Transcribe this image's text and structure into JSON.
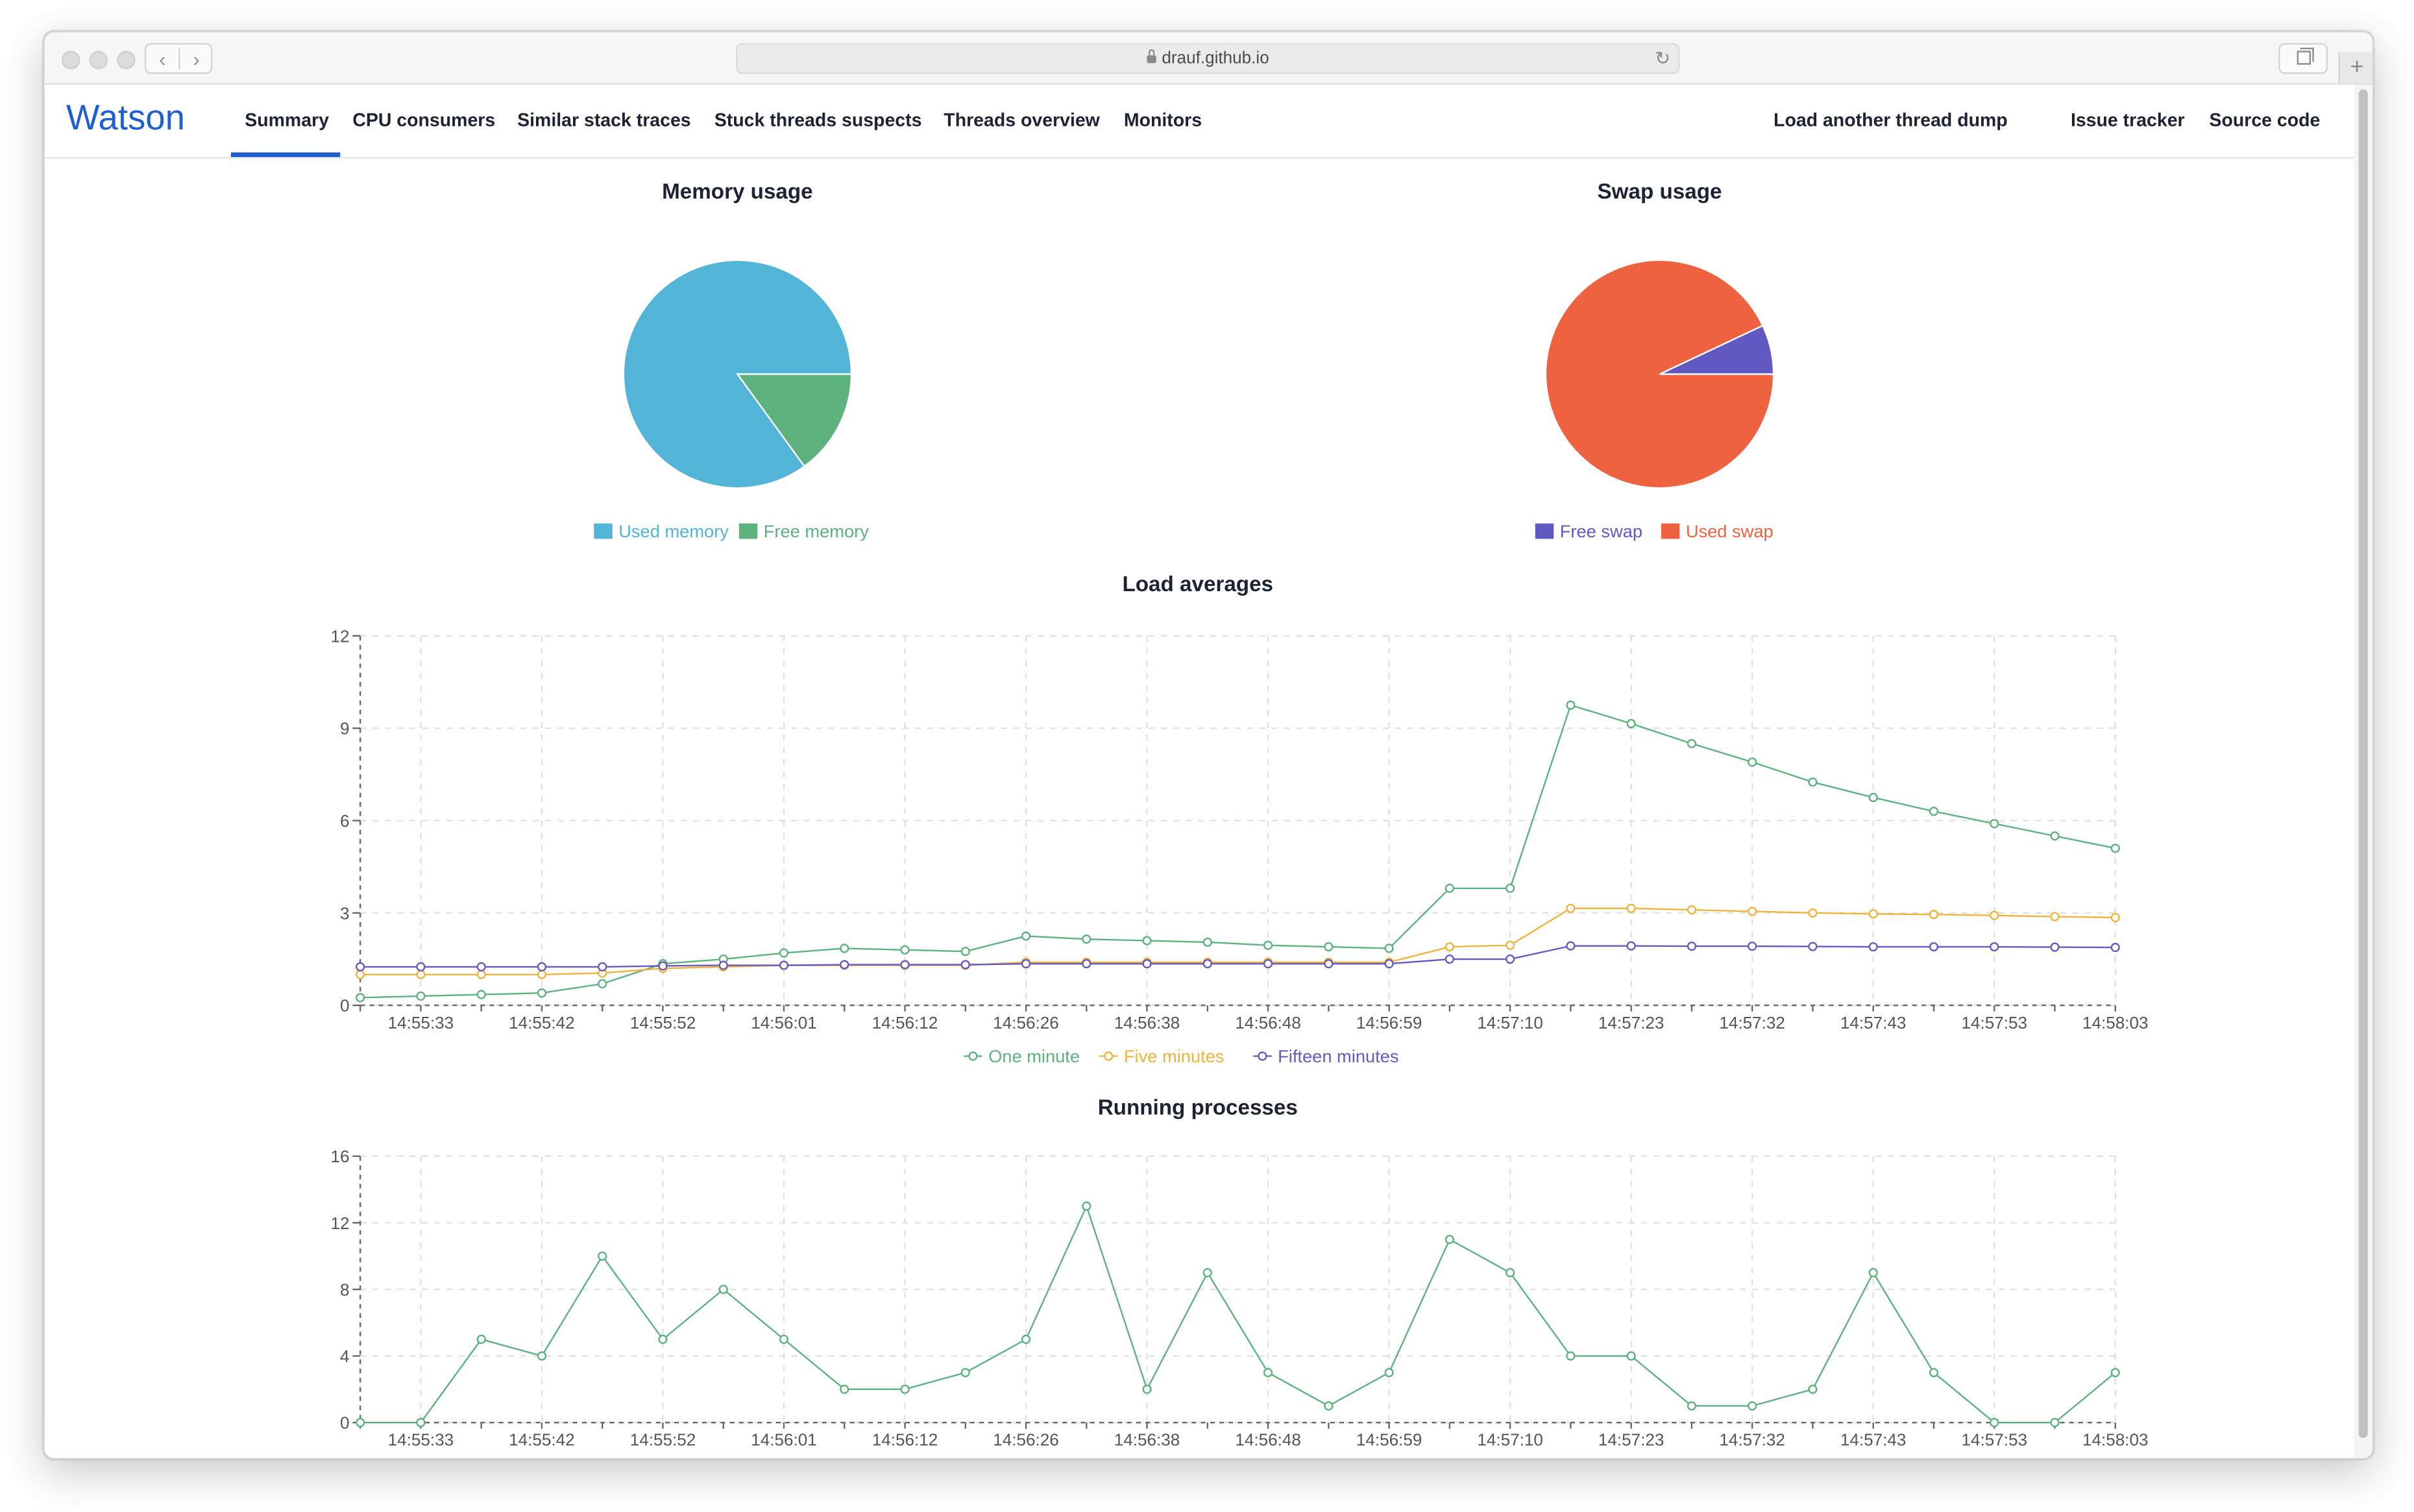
{
  "browser": {
    "url": "drauf.github.io"
  },
  "nav": {
    "brand": "Watson",
    "left_links": [
      "Summary",
      "CPU consumers",
      "Similar stack traces",
      "Stuck threads suspects",
      "Threads overview",
      "Monitors"
    ],
    "active": "Summary",
    "right_links": [
      "Load another thread dump",
      "Issue tracker",
      "Source code"
    ]
  },
  "colors": {
    "accent": "#1f5fcf",
    "used_memory": "#52b4d6",
    "free_memory": "#5db27e",
    "free_swap": "#6158c1",
    "used_swap": "#ef6240",
    "one_minute": "#5db27e",
    "five_minutes": "#f0b33c",
    "fifteen_minutes": "#6a58c1"
  },
  "chart_data": [
    {
      "type": "pie",
      "title": "Memory usage",
      "slices": [
        {
          "label": "Used memory",
          "value": 85
        },
        {
          "label": "Free memory",
          "value": 15
        }
      ],
      "legend": "bottom"
    },
    {
      "type": "pie",
      "title": "Swap usage",
      "slices": [
        {
          "label": "Free swap",
          "value": 7
        },
        {
          "label": "Used swap",
          "value": 93
        }
      ],
      "legend": "bottom"
    },
    {
      "type": "line",
      "title": "Load averages",
      "x": [
        "14:55:28",
        "14:55:33",
        "14:55:38",
        "14:55:42",
        "14:55:47",
        "14:55:52",
        "14:55:56",
        "14:56:01",
        "14:56:07",
        "14:56:12",
        "14:56:19",
        "14:56:26",
        "14:56:32",
        "14:56:38",
        "14:56:43",
        "14:56:48",
        "14:56:54",
        "14:56:59",
        "14:57:04",
        "14:57:10",
        "14:57:16",
        "14:57:23",
        "14:57:27",
        "14:57:32",
        "14:57:37",
        "14:57:43",
        "14:57:48",
        "14:57:53",
        "14:57:58",
        "14:58:03"
      ],
      "tick_labels": [
        "14:55:33",
        "14:55:42",
        "14:55:52",
        "14:56:01",
        "14:56:12",
        "14:56:26",
        "14:56:38",
        "14:56:48",
        "14:56:59",
        "14:57:10",
        "14:57:23",
        "14:57:32",
        "14:57:43",
        "14:57:53",
        "14:58:03"
      ],
      "series": [
        {
          "name": "One minute",
          "values": [
            0.25,
            0.3,
            0.35,
            0.4,
            0.7,
            1.35,
            1.5,
            1.7,
            1.85,
            1.8,
            1.75,
            2.25,
            2.15,
            2.1,
            2.05,
            1.95,
            1.9,
            1.85,
            3.8,
            3.8,
            9.75,
            9.15,
            8.5,
            7.9,
            7.25,
            6.75,
            6.3,
            5.9,
            5.5,
            5.1
          ]
        },
        {
          "name": "Five minutes",
          "values": [
            1.0,
            1.0,
            1.0,
            1.0,
            1.05,
            1.2,
            1.25,
            1.3,
            1.3,
            1.3,
            1.3,
            1.4,
            1.4,
            1.4,
            1.4,
            1.4,
            1.4,
            1.4,
            1.9,
            1.95,
            3.15,
            3.15,
            3.1,
            3.05,
            3.0,
            2.97,
            2.95,
            2.92,
            2.88,
            2.85
          ]
        },
        {
          "name": "Fifteen minutes",
          "values": [
            1.25,
            1.25,
            1.25,
            1.25,
            1.25,
            1.28,
            1.3,
            1.3,
            1.32,
            1.32,
            1.32,
            1.35,
            1.35,
            1.35,
            1.35,
            1.35,
            1.35,
            1.35,
            1.5,
            1.5,
            1.93,
            1.93,
            1.92,
            1.92,
            1.91,
            1.9,
            1.9,
            1.9,
            1.89,
            1.88
          ]
        }
      ],
      "yticks": [
        0,
        3,
        6,
        9,
        12
      ],
      "ylim": [
        0,
        12
      ],
      "grid": true,
      "legend": "bottom"
    },
    {
      "type": "line",
      "title": "Running processes",
      "x": [
        "14:55:28",
        "14:55:33",
        "14:55:38",
        "14:55:42",
        "14:55:47",
        "14:55:52",
        "14:55:56",
        "14:56:01",
        "14:56:07",
        "14:56:12",
        "14:56:19",
        "14:56:26",
        "14:56:32",
        "14:56:38",
        "14:56:43",
        "14:56:48",
        "14:56:54",
        "14:56:59",
        "14:57:04",
        "14:57:10",
        "14:57:16",
        "14:57:23",
        "14:57:27",
        "14:57:32",
        "14:57:37",
        "14:57:43",
        "14:57:48",
        "14:57:53",
        "14:57:58",
        "14:58:03"
      ],
      "tick_labels": [
        "14:55:33",
        "14:55:42",
        "14:55:52",
        "14:56:01",
        "14:56:12",
        "14:56:26",
        "14:56:38",
        "14:56:48",
        "14:56:59",
        "14:57:10",
        "14:57:23",
        "14:57:32",
        "14:57:43",
        "14:57:53",
        "14:58:03"
      ],
      "series": [
        {
          "name": "",
          "values": [
            0,
            0,
            5,
            4,
            10,
            5,
            8,
            5,
            2,
            2,
            3,
            5,
            13,
            2,
            9,
            3,
            1,
            3,
            11,
            9,
            4,
            4,
            1,
            1,
            2,
            9,
            3,
            0,
            0,
            3
          ]
        }
      ],
      "yticks": [
        0,
        4,
        8,
        12,
        16
      ],
      "ylim": [
        0,
        16
      ],
      "grid": true
    }
  ]
}
